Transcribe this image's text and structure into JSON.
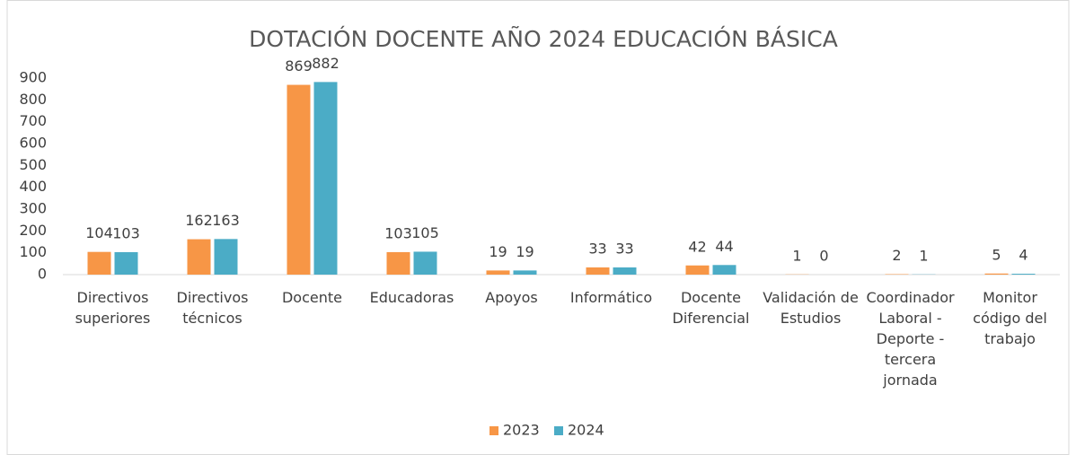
{
  "chart_data": {
    "type": "bar",
    "title": "DOTACIÓN DOCENTE AÑO 2024 EDUCACIÓN BÁSICA",
    "categories": [
      "Directivos superiores",
      "Directivos técnicos",
      "Docente",
      "Educadoras",
      "Apoyos",
      "Informático",
      "Docente Diferencial",
      "Validación de Estudios",
      "Coordinador Laboral - Deporte - tercera jornada",
      "Monitor código del trabajo"
    ],
    "series": [
      {
        "name": "2023",
        "color": "#f79646",
        "values": [
          104,
          162,
          869,
          103,
          19,
          33,
          42,
          1,
          2,
          5
        ]
      },
      {
        "name": "2024",
        "color": "#4bacc6",
        "values": [
          103,
          163,
          882,
          105,
          19,
          33,
          44,
          0,
          1,
          4
        ]
      }
    ],
    "ylim": [
      0,
      900
    ],
    "yticks": [
      0,
      100,
      200,
      300,
      400,
      500,
      600,
      700,
      800,
      900
    ],
    "grid": false,
    "legend": "bottom"
  }
}
